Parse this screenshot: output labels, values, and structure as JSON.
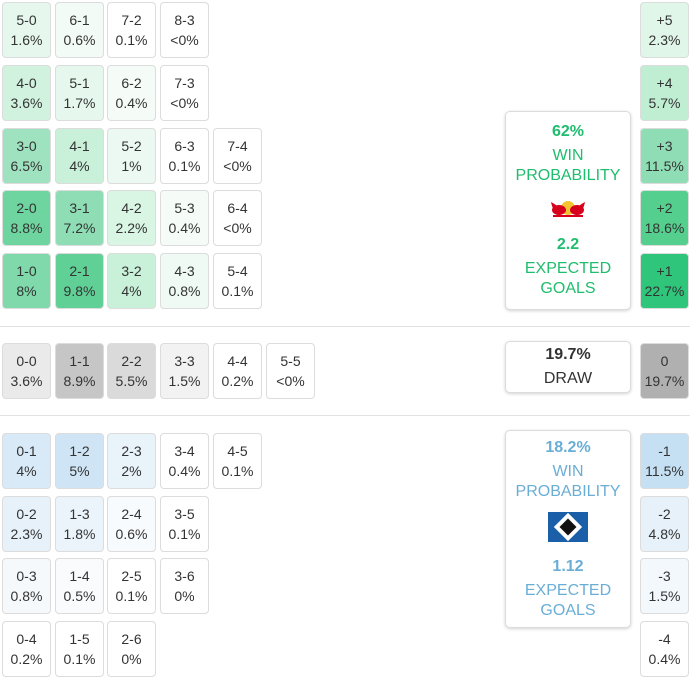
{
  "home_scores": [
    {
      "score": "5-0",
      "pct": "1.6%",
      "bg": "#e6f8ee"
    },
    {
      "score": "6-1",
      "pct": "0.6%",
      "bg": "#f2fbf6"
    },
    {
      "score": "7-2",
      "pct": "0.1%",
      "bg": "#ffffff"
    },
    {
      "score": "8-3",
      "pct": "<0%",
      "bg": "#ffffff"
    },
    {
      "score": "4-0",
      "pct": "3.6%",
      "bg": "#d0f2de"
    },
    {
      "score": "5-1",
      "pct": "1.7%",
      "bg": "#e6f8ee"
    },
    {
      "score": "6-2",
      "pct": "0.4%",
      "bg": "#f5fcf8"
    },
    {
      "score": "7-3",
      "pct": "<0%",
      "bg": "#ffffff"
    },
    {
      "score": "3-0",
      "pct": "6.5%",
      "bg": "#9fe2bf"
    },
    {
      "score": "4-1",
      "pct": "4%",
      "bg": "#c9f0d9"
    },
    {
      "score": "5-2",
      "pct": "1%",
      "bg": "#ecf9f2"
    },
    {
      "score": "6-3",
      "pct": "0.1%",
      "bg": "#ffffff"
    },
    {
      "score": "7-4",
      "pct": "<0%",
      "bg": "#ffffff"
    },
    {
      "score": "2-0",
      "pct": "8.8%",
      "bg": "#6fd5a0"
    },
    {
      "score": "3-1",
      "pct": "7.2%",
      "bg": "#8fddb5"
    },
    {
      "score": "4-2",
      "pct": "2.2%",
      "bg": "#d9f5e4"
    },
    {
      "score": "5-3",
      "pct": "0.4%",
      "bg": "#f5fcf8"
    },
    {
      "score": "6-4",
      "pct": "<0%",
      "bg": "#ffffff"
    },
    {
      "score": "1-0",
      "pct": "8%",
      "bg": "#7fd9aa"
    },
    {
      "score": "2-1",
      "pct": "9.8%",
      "bg": "#60d096"
    },
    {
      "score": "3-2",
      "pct": "4%",
      "bg": "#c9f0d9"
    },
    {
      "score": "4-3",
      "pct": "0.8%",
      "bg": "#eefaf3"
    },
    {
      "score": "5-4",
      "pct": "0.1%",
      "bg": "#ffffff"
    }
  ],
  "draw_scores": [
    {
      "score": "0-0",
      "pct": "3.6%",
      "bg": "#eaeaea"
    },
    {
      "score": "1-1",
      "pct": "8.9%",
      "bg": "#c6c6c6"
    },
    {
      "score": "2-2",
      "pct": "5.5%",
      "bg": "#dadada"
    },
    {
      "score": "3-3",
      "pct": "1.5%",
      "bg": "#f2f2f2"
    },
    {
      "score": "4-4",
      "pct": "0.2%",
      "bg": "#ffffff"
    },
    {
      "score": "5-5",
      "pct": "<0%",
      "bg": "#ffffff"
    }
  ],
  "away_scores": [
    {
      "score": "0-1",
      "pct": "4%",
      "bg": "#d8eaf7"
    },
    {
      "score": "1-2",
      "pct": "5%",
      "bg": "#cfe5f5"
    },
    {
      "score": "2-3",
      "pct": "2%",
      "bg": "#e9f3fa"
    },
    {
      "score": "3-4",
      "pct": "0.4%",
      "bg": "#ffffff"
    },
    {
      "score": "4-5",
      "pct": "0.1%",
      "bg": "#ffffff"
    },
    {
      "score": "0-2",
      "pct": "2.3%",
      "bg": "#e6f1fa"
    },
    {
      "score": "1-3",
      "pct": "1.8%",
      "bg": "#ebf4fb"
    },
    {
      "score": "2-4",
      "pct": "0.6%",
      "bg": "#f8fbfd"
    },
    {
      "score": "3-5",
      "pct": "0.1%",
      "bg": "#ffffff"
    },
    {
      "score": "0-3",
      "pct": "0.8%",
      "bg": "#f5f9fc"
    },
    {
      "score": "1-4",
      "pct": "0.5%",
      "bg": "#f9fbfd"
    },
    {
      "score": "2-5",
      "pct": "0.1%",
      "bg": "#ffffff"
    },
    {
      "score": "3-6",
      "pct": "0%",
      "bg": "#ffffff"
    },
    {
      "score": "0-4",
      "pct": "0.2%",
      "bg": "#ffffff"
    },
    {
      "score": "1-5",
      "pct": "0.1%",
      "bg": "#ffffff"
    },
    {
      "score": "2-6",
      "pct": "0%",
      "bg": "#ffffff"
    }
  ],
  "margins": [
    {
      "label": "+5",
      "pct": "2.3%",
      "bg": "#e0f6e9"
    },
    {
      "label": "+4",
      "pct": "5.7%",
      "bg": "#c0eed3"
    },
    {
      "label": "+3",
      "pct": "11.5%",
      "bg": "#8fddb5"
    },
    {
      "label": "+2",
      "pct": "18.6%",
      "bg": "#55cf8e"
    },
    {
      "label": "+1",
      "pct": "22.7%",
      "bg": "#2fc67b"
    },
    {
      "label": "0",
      "pct": "19.7%",
      "bg": "#b0b0b0"
    },
    {
      "label": "-1",
      "pct": "11.5%",
      "bg": "#c5e0f3"
    },
    {
      "label": "-2",
      "pct": "4.8%",
      "bg": "#e6f1fa"
    },
    {
      "label": "-3",
      "pct": "1.5%",
      "bg": "#f3f8fc"
    },
    {
      "label": "-4",
      "pct": "0.4%",
      "bg": "#ffffff"
    }
  ],
  "home_card": {
    "win_pct": "62%",
    "win_label": "WIN PROBABILITY",
    "logo": "rb-leipzig-bull-crest",
    "xg": "2.2",
    "xg_label": "EXPECTED GOALS",
    "color": "#1fbd6e"
  },
  "draw_card": {
    "pct": "19.7%",
    "label": "DRAW"
  },
  "away_card": {
    "win_pct": "18.2%",
    "win_label": "WIN PROBABILITY",
    "logo": "hamburg-diamond-crest",
    "xg": "1.12",
    "xg_label": "EXPECTED GOALS",
    "color": "#6aaed6"
  }
}
